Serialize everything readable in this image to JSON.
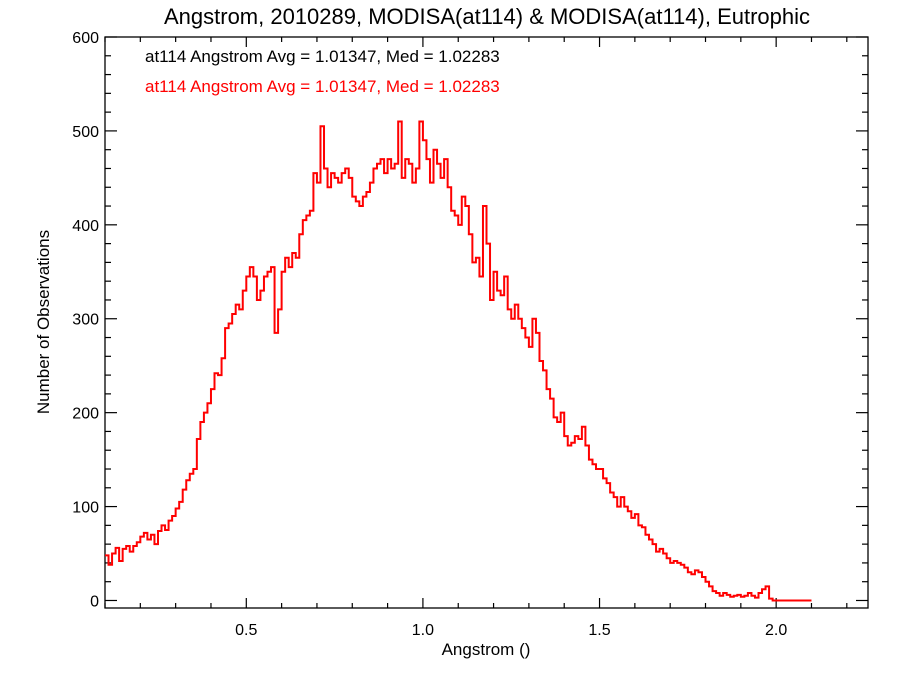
{
  "chart_data": {
    "type": "histogram",
    "title": "Angstrom, 2010289, MODISA(at114) & MODISA(at114), Eutrophic",
    "xlabel": "Angstrom ()",
    "ylabel": "Number of Observations",
    "xlim": [
      0.1,
      2.26
    ],
    "ylim": [
      -8,
      600
    ],
    "x_ticks": [
      0.5,
      1.0,
      1.5,
      2.0
    ],
    "x_tick_labels": [
      "0.5",
      "1.0",
      "1.5",
      "2.0"
    ],
    "y_ticks": [
      0,
      100,
      200,
      300,
      400,
      500,
      600
    ],
    "y_tick_labels": [
      "0",
      "100",
      "200",
      "300",
      "400",
      "500",
      "600"
    ],
    "annotations": [
      {
        "text": "at114 Angstrom Avg = 1.01347, Med = 1.02283",
        "color": "#000000"
      },
      {
        "text": "at114 Angstrom Avg = 1.01347, Med = 1.02283",
        "color": "#ff0000"
      }
    ],
    "series": [
      {
        "color": "#ff0000",
        "bin_start": 0.1,
        "bin_width": 0.01,
        "values": [
          48,
          38,
          50,
          56,
          42,
          55,
          58,
          52,
          58,
          62,
          68,
          72,
          65,
          70,
          60,
          74,
          80,
          75,
          85,
          90,
          98,
          105,
          118,
          128,
          135,
          140,
          172,
          190,
          200,
          210,
          225,
          242,
          240,
          258,
          290,
          295,
          305,
          315,
          310,
          330,
          345,
          355,
          345,
          320,
          330,
          345,
          350,
          355,
          285,
          310,
          350,
          365,
          355,
          370,
          365,
          390,
          405,
          410,
          415,
          455,
          445,
          505,
          460,
          440,
          455,
          450,
          445,
          455,
          460,
          450,
          430,
          425,
          420,
          430,
          435,
          445,
          460,
          465,
          470,
          455,
          470,
          460,
          465,
          510,
          450,
          470,
          465,
          445,
          460,
          510,
          490,
          470,
          445,
          480,
          465,
          450,
          470,
          440,
          415,
          410,
          400,
          430,
          420,
          390,
          360,
          365,
          345,
          420,
          380,
          320,
          350,
          330,
          325,
          345,
          310,
          300,
          315,
          300,
          290,
          280,
          270,
          300,
          285,
          255,
          245,
          225,
          215,
          195,
          190,
          200,
          175,
          165,
          168,
          175,
          172,
          185,
          165,
          150,
          145,
          140,
          140,
          130,
          125,
          115,
          110,
          100,
          110,
          100,
          95,
          88,
          92,
          80,
          78,
          70,
          65,
          60,
          52,
          55,
          50,
          45,
          40,
          42,
          40,
          38,
          35,
          30,
          28,
          32,
          30,
          25,
          20,
          15,
          10,
          8,
          5,
          8,
          6,
          4,
          5,
          6,
          4,
          5,
          8,
          5,
          3,
          8,
          12,
          15,
          2,
          0,
          0,
          0,
          0,
          0,
          0,
          0,
          0,
          0,
          0,
          0
        ]
      }
    ]
  }
}
